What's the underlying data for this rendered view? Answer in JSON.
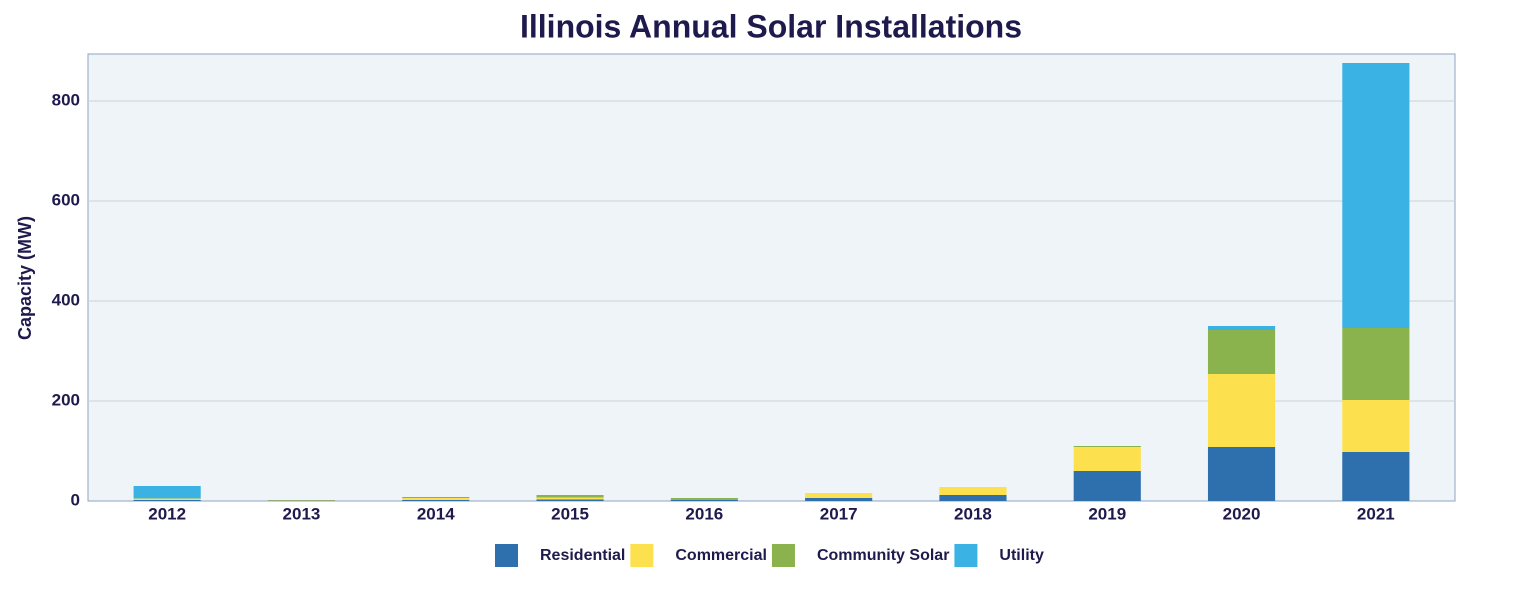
{
  "chart_data": {
    "type": "stacked_bar",
    "title": "Illinois Annual Solar Installations",
    "y_label": "Capacity (MW)",
    "categories": [
      "2012",
      "2013",
      "2014",
      "2015",
      "2016",
      "2017",
      "2018",
      "2019",
      "2020",
      "2021"
    ],
    "series": [
      {
        "name": "Residential",
        "color": "#2e6fad",
        "values": [
          2,
          1,
          2,
          3,
          3,
          6,
          12,
          60,
          108,
          98
        ]
      },
      {
        "name": "Commercial",
        "color": "#fde04d",
        "values": [
          3,
          1,
          4,
          4,
          1,
          10,
          16,
          48,
          146,
          104
        ]
      },
      {
        "name": "Community Solar",
        "color": "#8ab34e",
        "values": [
          0,
          0,
          2,
          5,
          2,
          0,
          0,
          2,
          88,
          144
        ]
      },
      {
        "name": "Utility",
        "color": "#3ab3e4",
        "values": [
          25,
          0,
          0,
          0,
          0,
          0,
          0,
          0,
          8,
          530
        ]
      }
    ],
    "ylim": [
      0,
      894
    ],
    "yticks": [
      0,
      200,
      400,
      600,
      800
    ],
    "grid": true
  }
}
